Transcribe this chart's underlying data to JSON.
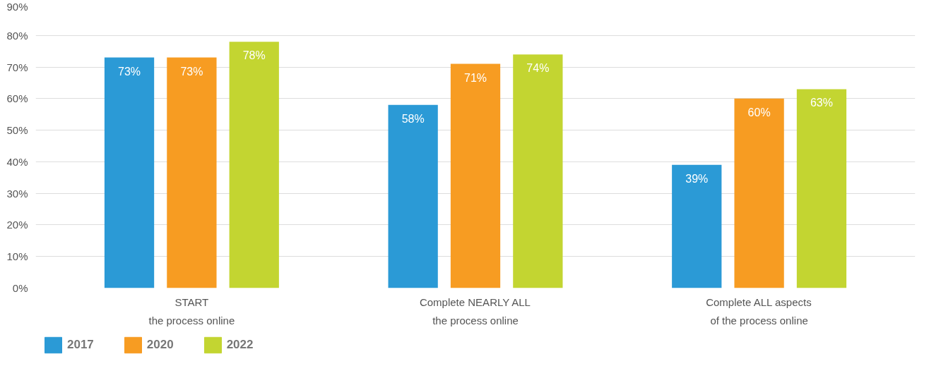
{
  "chart_data": {
    "type": "bar",
    "categories": [
      "START\nthe process online",
      "Complete NEARLY ALL\nthe process online",
      "Complete ALL aspects\nof the process online"
    ],
    "series": [
      {
        "name": "2017",
        "color": "#2b9ad6",
        "values": [
          73,
          58,
          39
        ]
      },
      {
        "name": "2020",
        "color": "#f79c22",
        "values": [
          73,
          71,
          60
        ]
      },
      {
        "name": "2022",
        "color": "#c3d531",
        "values": [
          78,
          74,
          63
        ]
      }
    ],
    "ylim": [
      0,
      90
    ],
    "yticks": [
      {
        "value": 0,
        "label": "0%"
      },
      {
        "value": 10,
        "label": "10%"
      },
      {
        "value": 20,
        "label": "20%"
      },
      {
        "value": 30,
        "label": "30%"
      },
      {
        "value": 40,
        "label": "40%"
      },
      {
        "value": 50,
        "label": "50%"
      },
      {
        "value": 60,
        "label": "60%"
      },
      {
        "value": 70,
        "label": "70%"
      },
      {
        "value": 80,
        "label": "80%"
      },
      {
        "value": 90,
        "label": "90%"
      }
    ],
    "value_labels": [
      [
        "73%",
        "58%",
        "39%"
      ],
      [
        "73%",
        "71%",
        "60%"
      ],
      [
        "78%",
        "74%",
        "63%"
      ]
    ],
    "grid": "y",
    "legend": "bottom left"
  }
}
